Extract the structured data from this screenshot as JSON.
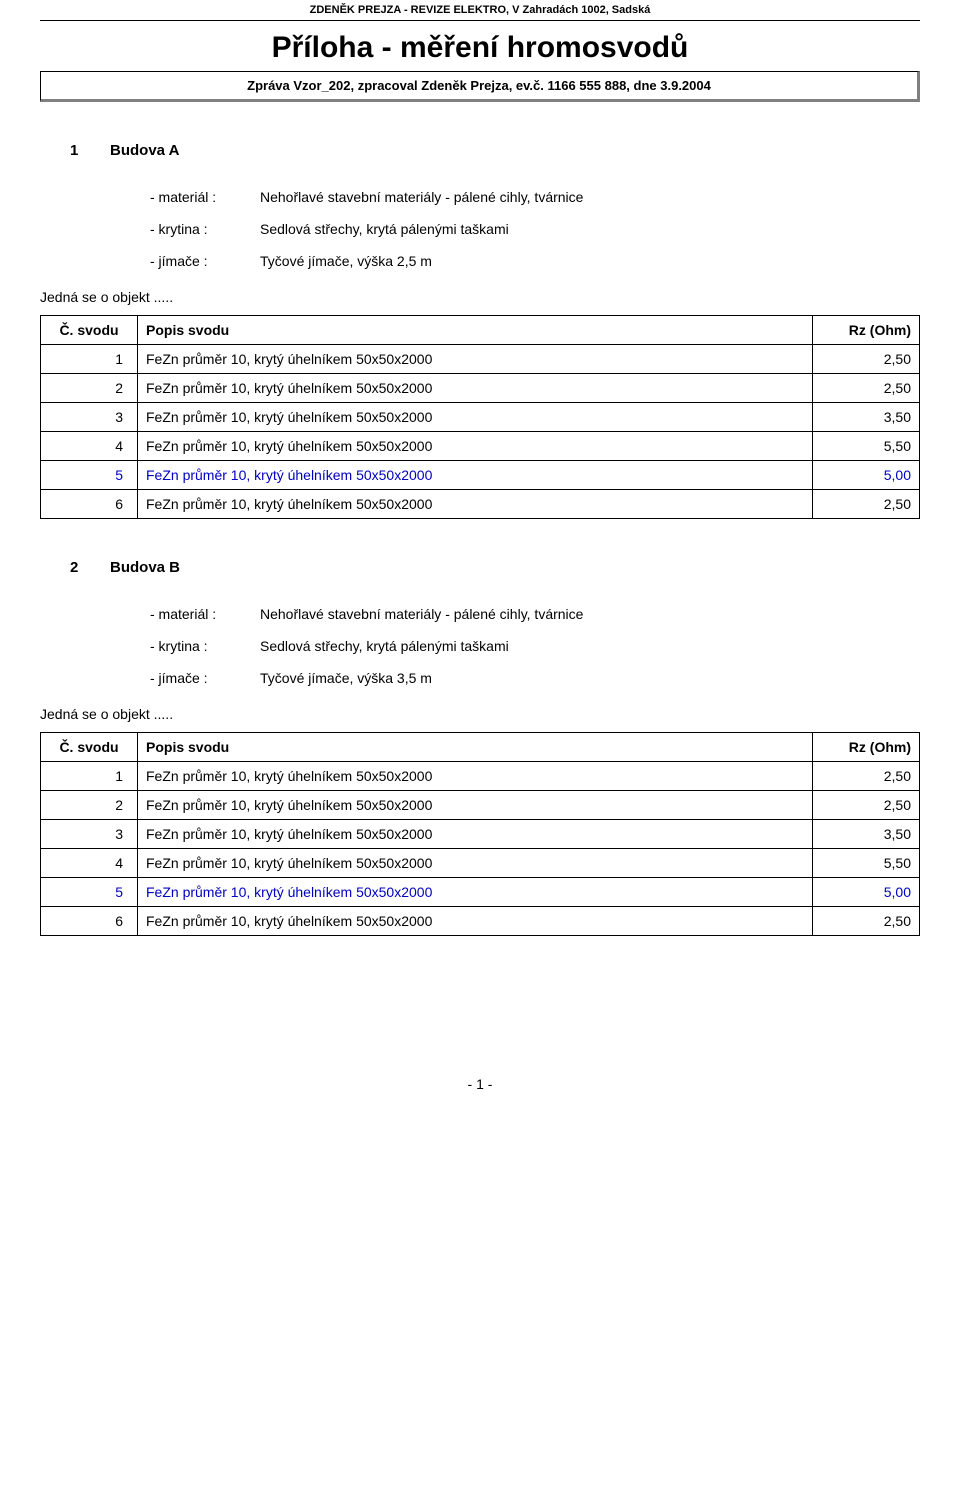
{
  "header": {
    "top_line": "ZDENĚK PREJZA - REVIZE ELEKTRO, V Zahradách 1002, Sadská",
    "main_title": "Příloha - měření hromosvodů",
    "report_line": "Zpráva  Vzor_202, zpracoval Zdeněk Prejza, ev.č. 1166 555 888, dne 3.9.2004"
  },
  "colors": {
    "text": "#000000",
    "highlight": "#0000c0",
    "border": "#000000",
    "shadow": "#808080",
    "background": "#ffffff"
  },
  "labels": {
    "material": "- materiál :",
    "krytina": "- krytina :",
    "jimace": "- jímače :",
    "note": "Jedná se o objekt .....",
    "col_num": "Č. svodu",
    "col_desc": "Popis svodu",
    "col_rz": "Rz  (Ohm)"
  },
  "sections": [
    {
      "num": "1",
      "name": "Budova A",
      "props": {
        "material": "Nehořlavé stavební materiály - pálené cihly, tvárnice",
        "krytina": "Sedlová střechy, krytá pálenými taškami",
        "jimace": "Tyčové jímače, výška 2,5 m"
      },
      "rows": [
        {
          "n": "1",
          "desc": "FeZn průměr 10, krytý úhelníkem 50x50x2000",
          "rz": "2,50",
          "hl": false
        },
        {
          "n": "2",
          "desc": "FeZn průměr 10, krytý úhelníkem 50x50x2000",
          "rz": "2,50",
          "hl": false
        },
        {
          "n": "3",
          "desc": "FeZn průměr 10, krytý úhelníkem 50x50x2000",
          "rz": "3,50",
          "hl": false
        },
        {
          "n": "4",
          "desc": "FeZn průměr 10, krytý úhelníkem 50x50x2000",
          "rz": "5,50",
          "hl": false
        },
        {
          "n": "5",
          "desc": "FeZn průměr 10, krytý úhelníkem 50x50x2000",
          "rz": "5,00",
          "hl": true
        },
        {
          "n": "6",
          "desc": "FeZn průměr 10, krytý úhelníkem 50x50x2000",
          "rz": "2,50",
          "hl": false
        }
      ]
    },
    {
      "num": "2",
      "name": "Budova B",
      "props": {
        "material": "Nehořlavé stavební materiály - pálené cihly, tvárnice",
        "krytina": "Sedlová střechy, krytá pálenými taškami",
        "jimace": "Tyčové jímače, výška 3,5 m"
      },
      "rows": [
        {
          "n": "1",
          "desc": "FeZn průměr 10, krytý úhelníkem 50x50x2000",
          "rz": "2,50",
          "hl": false
        },
        {
          "n": "2",
          "desc": "FeZn průměr 10, krytý úhelníkem 50x50x2000",
          "rz": "2,50",
          "hl": false
        },
        {
          "n": "3",
          "desc": "FeZn průměr 10, krytý úhelníkem 50x50x2000",
          "rz": "3,50",
          "hl": false
        },
        {
          "n": "4",
          "desc": "FeZn průměr 10, krytý úhelníkem 50x50x2000",
          "rz": "5,50",
          "hl": false
        },
        {
          "n": "5",
          "desc": "FeZn průměr 10, krytý úhelníkem 50x50x2000",
          "rz": "5,00",
          "hl": true
        },
        {
          "n": "6",
          "desc": "FeZn průměr 10, krytý úhelníkem 50x50x2000",
          "rz": "2,50",
          "hl": false
        }
      ]
    }
  ],
  "footer": "-  1  -"
}
